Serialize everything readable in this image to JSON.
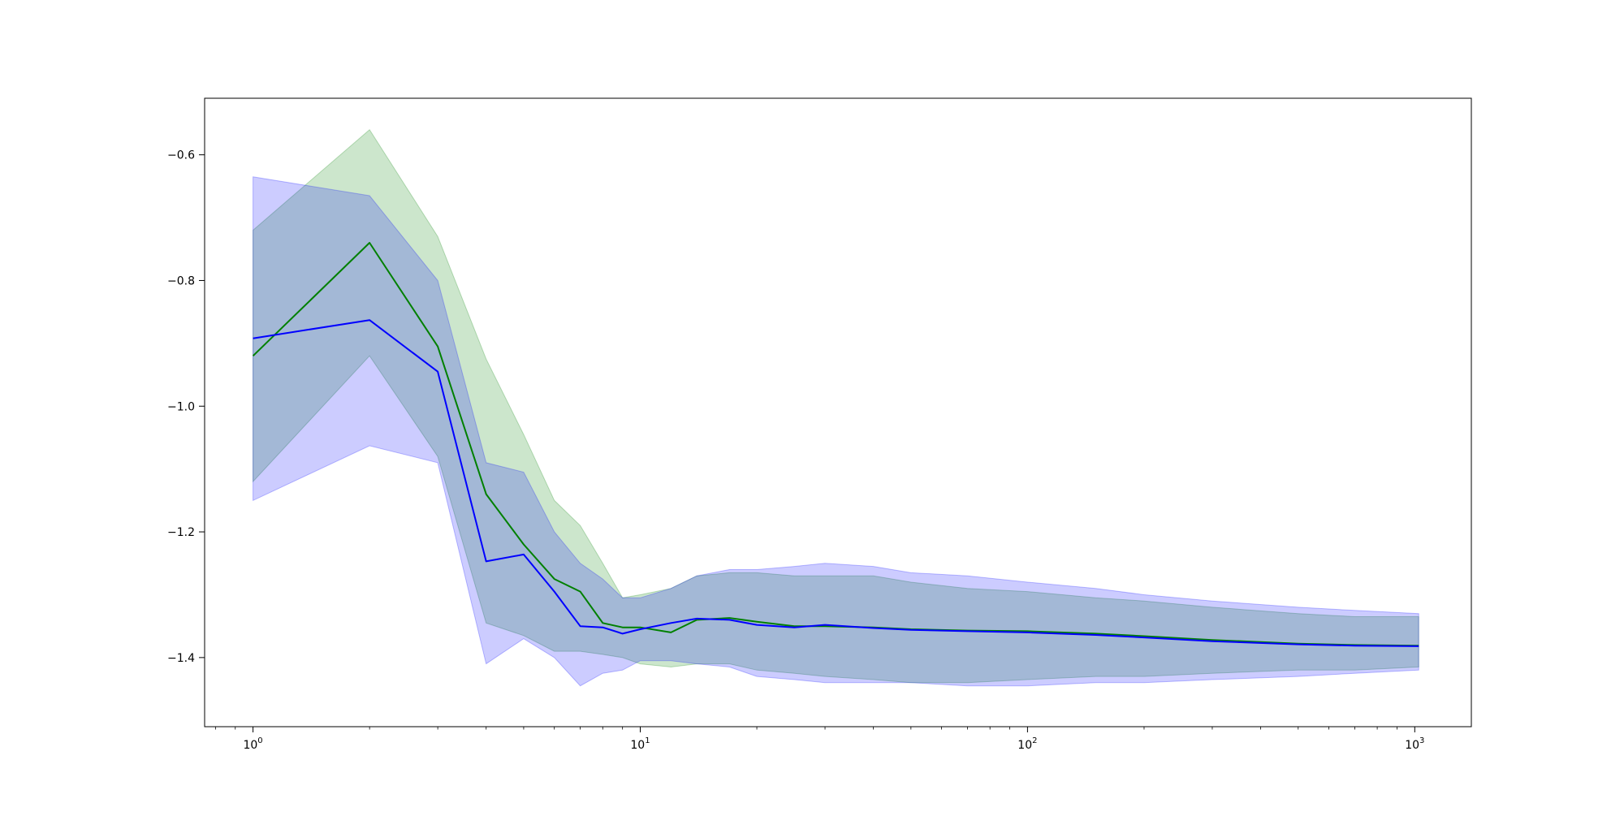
{
  "chart_data": {
    "type": "line",
    "title": "",
    "xlabel": "",
    "ylabel": "",
    "xscale": "log",
    "xlim": [
      0.75,
      1400
    ],
    "ylim": [
      -1.51,
      -0.51
    ],
    "grid": false,
    "legend": "none",
    "xticks": [
      {
        "value": 1,
        "base": "10",
        "exp": "0"
      },
      {
        "value": 10,
        "base": "10",
        "exp": "1"
      },
      {
        "value": 100,
        "base": "10",
        "exp": "2"
      },
      {
        "value": 1000,
        "base": "10",
        "exp": "3"
      }
    ],
    "yticks": [
      {
        "value": -0.6,
        "label": "−0.6"
      },
      {
        "value": -0.8,
        "label": "−0.8"
      },
      {
        "value": -1.0,
        "label": "−1.0"
      },
      {
        "value": -1.2,
        "label": "−1.2"
      },
      {
        "value": -1.4,
        "label": "−1.4"
      }
    ],
    "series": [
      {
        "color": "#008000",
        "band_color": "#008000",
        "x": [
          1,
          2,
          3,
          4,
          5,
          6,
          7,
          8,
          9,
          10,
          12,
          14,
          17,
          20,
          25,
          30,
          40,
          50,
          70,
          100,
          150,
          200,
          300,
          500,
          700,
          1024
        ],
        "mean": [
          -0.92,
          -0.74,
          -0.905,
          -1.14,
          -1.22,
          -1.275,
          -1.295,
          -1.345,
          -1.352,
          -1.352,
          -1.36,
          -1.34,
          -1.337,
          -1.343,
          -1.35,
          -1.35,
          -1.352,
          -1.355,
          -1.357,
          -1.358,
          -1.362,
          -1.366,
          -1.372,
          -1.378,
          -1.38,
          -1.381
        ],
        "upper": [
          -0.72,
          -0.56,
          -0.73,
          -0.925,
          -1.045,
          -1.15,
          -1.19,
          -1.25,
          -1.305,
          -1.3,
          -1.29,
          -1.27,
          -1.265,
          -1.265,
          -1.27,
          -1.27,
          -1.27,
          -1.28,
          -1.29,
          -1.295,
          -1.305,
          -1.31,
          -1.32,
          -1.33,
          -1.335,
          -1.335
        ],
        "lower": [
          -1.12,
          -0.92,
          -1.08,
          -1.345,
          -1.365,
          -1.39,
          -1.39,
          -1.395,
          -1.4,
          -1.41,
          -1.415,
          -1.41,
          -1.41,
          -1.42,
          -1.425,
          -1.43,
          -1.435,
          -1.44,
          -1.44,
          -1.435,
          -1.43,
          -1.43,
          -1.425,
          -1.42,
          -1.42,
          -1.415
        ]
      },
      {
        "color": "#0000ff",
        "band_color": "#0000ff",
        "x": [
          1,
          2,
          3,
          4,
          5,
          6,
          7,
          8,
          9,
          10,
          12,
          14,
          17,
          20,
          25,
          30,
          40,
          50,
          70,
          100,
          150,
          200,
          300,
          500,
          700,
          1024
        ],
        "mean": [
          -0.892,
          -0.863,
          -0.945,
          -1.247,
          -1.236,
          -1.295,
          -1.35,
          -1.352,
          -1.362,
          -1.355,
          -1.345,
          -1.338,
          -1.34,
          -1.348,
          -1.352,
          -1.348,
          -1.353,
          -1.356,
          -1.358,
          -1.36,
          -1.364,
          -1.368,
          -1.374,
          -1.379,
          -1.381,
          -1.382
        ],
        "upper": [
          -0.635,
          -0.665,
          -0.8,
          -1.09,
          -1.105,
          -1.2,
          -1.25,
          -1.275,
          -1.305,
          -1.305,
          -1.29,
          -1.27,
          -1.26,
          -1.26,
          -1.255,
          -1.25,
          -1.255,
          -1.265,
          -1.27,
          -1.28,
          -1.29,
          -1.3,
          -1.31,
          -1.32,
          -1.325,
          -1.33
        ],
        "lower": [
          -1.15,
          -1.063,
          -1.09,
          -1.41,
          -1.37,
          -1.4,
          -1.445,
          -1.425,
          -1.42,
          -1.405,
          -1.405,
          -1.41,
          -1.415,
          -1.43,
          -1.435,
          -1.44,
          -1.44,
          -1.44,
          -1.445,
          -1.445,
          -1.44,
          -1.44,
          -1.435,
          -1.43,
          -1.425,
          -1.42
        ]
      }
    ]
  }
}
